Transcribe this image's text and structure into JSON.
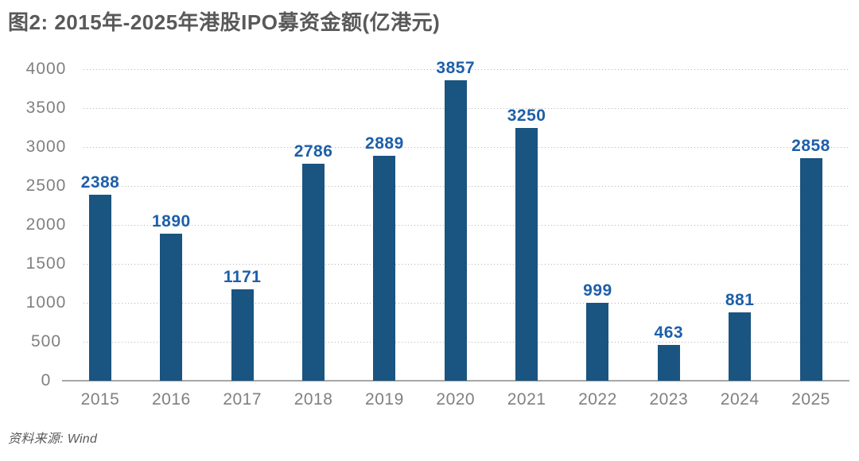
{
  "title": "图2: 2015年-2025年港股IPO募资金额(亿港元)",
  "source": "资料来源: Wind",
  "colors": {
    "bar": "#1A5480",
    "value_label": "#1E5FA8",
    "axis_text": "#808080",
    "title_text": "#595959",
    "gridline": "#B3B3B3",
    "axis_line": "#A6A6A6",
    "background": "#FFFFFF"
  },
  "chart_data": {
    "type": "bar",
    "title": "图2: 2015年-2025年港股IPO募资金额(亿港元)",
    "categories": [
      "2015",
      "2016",
      "2017",
      "2018",
      "2019",
      "2020",
      "2021",
      "2022",
      "2023",
      "2024",
      "2025"
    ],
    "values": [
      2388,
      1890,
      1171,
      2786,
      2889,
      3857,
      3250,
      999,
      463,
      881,
      2858
    ],
    "xlabel": "",
    "ylabel": "",
    "ylim": [
      0,
      4000
    ],
    "ytick_step": 500,
    "yticks": [
      0,
      500,
      1000,
      1500,
      2000,
      2500,
      3000,
      3500,
      4000
    ],
    "grid": "horizontal-dotted",
    "legend": "none",
    "bar_color": "#1A5480",
    "value_label_color": "#1E5FA8",
    "source": "资料来源: Wind"
  }
}
